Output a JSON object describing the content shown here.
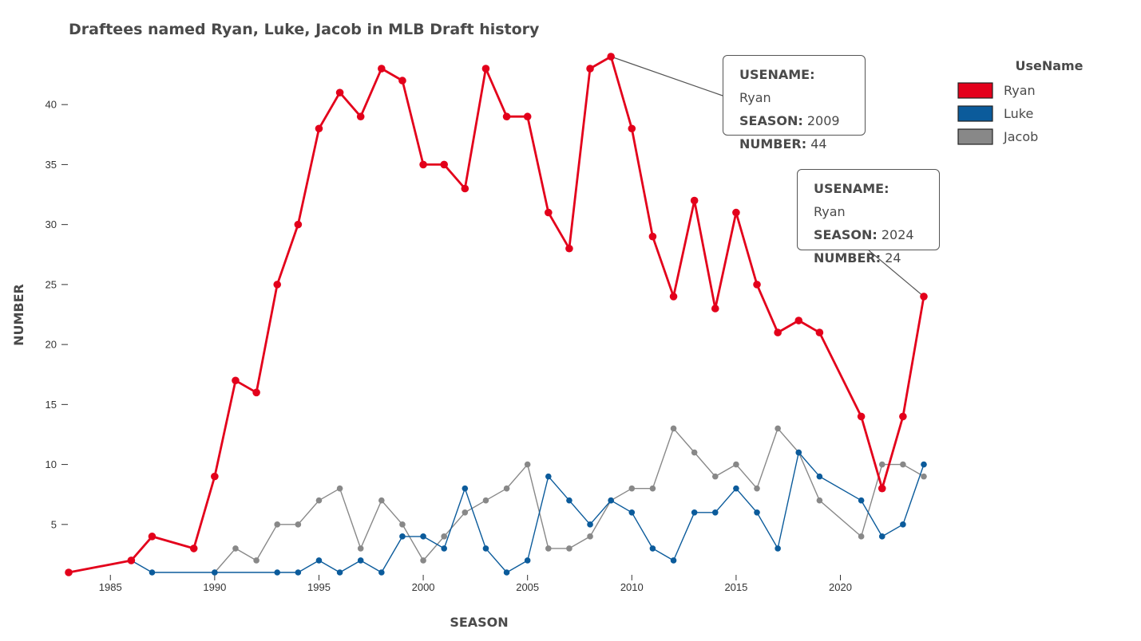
{
  "chart_data": {
    "type": "line",
    "title": "Draftees named Ryan, Luke, Jacob in MLB Draft history",
    "xlabel": "SEASON",
    "ylabel": "NUMBER",
    "xlim": [
      1983,
      2024
    ],
    "ylim": [
      1,
      44
    ],
    "xticks": [
      1985,
      1990,
      1995,
      2000,
      2005,
      2010,
      2015,
      2020
    ],
    "yticks": [
      5,
      10,
      15,
      20,
      25,
      30,
      35,
      40
    ],
    "legend_title": "UseName",
    "legend_position": "top-right",
    "grid": false,
    "series": [
      {
        "name": "Ryan",
        "color": "#e3001b",
        "x": [
          1983,
          1986,
          1987,
          1989,
          1990,
          1991,
          1992,
          1993,
          1994,
          1995,
          1996,
          1997,
          1998,
          1999,
          2000,
          2001,
          2002,
          2003,
          2004,
          2005,
          2006,
          2007,
          2008,
          2009,
          2010,
          2011,
          2012,
          2013,
          2014,
          2015,
          2016,
          2017,
          2018,
          2019,
          2021,
          2022,
          2023,
          2024
        ],
        "y": [
          1,
          2,
          4,
          3,
          9,
          17,
          16,
          25,
          30,
          38,
          41,
          39,
          43,
          42,
          35,
          35,
          33,
          43,
          39,
          39,
          31,
          28,
          43,
          44,
          38,
          29,
          24,
          32,
          23,
          31,
          25,
          21,
          22,
          21,
          14,
          8,
          14,
          24
        ]
      },
      {
        "name": "Luke",
        "color": "#0b5b9b",
        "x": [
          1986,
          1987,
          1990,
          1993,
          1994,
          1995,
          1996,
          1997,
          1998,
          1999,
          2000,
          2001,
          2002,
          2003,
          2004,
          2005,
          2006,
          2007,
          2008,
          2009,
          2010,
          2011,
          2012,
          2013,
          2014,
          2015,
          2016,
          2017,
          2018,
          2019,
          2021,
          2022,
          2023,
          2024
        ],
        "y": [
          2,
          1,
          1,
          1,
          1,
          2,
          1,
          2,
          1,
          4,
          4,
          3,
          8,
          3,
          1,
          2,
          9,
          7,
          5,
          7,
          6,
          3,
          2,
          6,
          6,
          8,
          6,
          3,
          11,
          9,
          7,
          4,
          5,
          10
        ]
      },
      {
        "name": "Jacob",
        "color": "#888888",
        "x": [
          1990,
          1991,
          1992,
          1993,
          1994,
          1995,
          1996,
          1997,
          1998,
          1999,
          2000,
          2001,
          2002,
          2003,
          2004,
          2005,
          2006,
          2007,
          2008,
          2009,
          2010,
          2011,
          2012,
          2013,
          2014,
          2015,
          2016,
          2017,
          2018,
          2019,
          2021,
          2022,
          2023,
          2024
        ],
        "y": [
          1,
          3,
          2,
          5,
          5,
          7,
          8,
          3,
          7,
          5,
          2,
          4,
          6,
          7,
          8,
          10,
          3,
          3,
          4,
          7,
          8,
          8,
          13,
          11,
          9,
          10,
          8,
          13,
          11,
          7,
          4,
          10,
          10,
          9
        ]
      }
    ],
    "annotations": [
      {
        "series": "Ryan",
        "x": 2009,
        "y": 44,
        "lines": [
          {
            "key": "USENAME:",
            "value": "Ryan"
          },
          {
            "key": "SEASON:",
            "value": "2009"
          },
          {
            "key": "NUMBER:",
            "value": "44"
          }
        ]
      },
      {
        "series": "Ryan",
        "x": 2024,
        "y": 24,
        "lines": [
          {
            "key": "USENAME:",
            "value": "Ryan"
          },
          {
            "key": "SEASON:",
            "value": "2024"
          },
          {
            "key": "NUMBER:",
            "value": "24"
          }
        ]
      }
    ]
  }
}
